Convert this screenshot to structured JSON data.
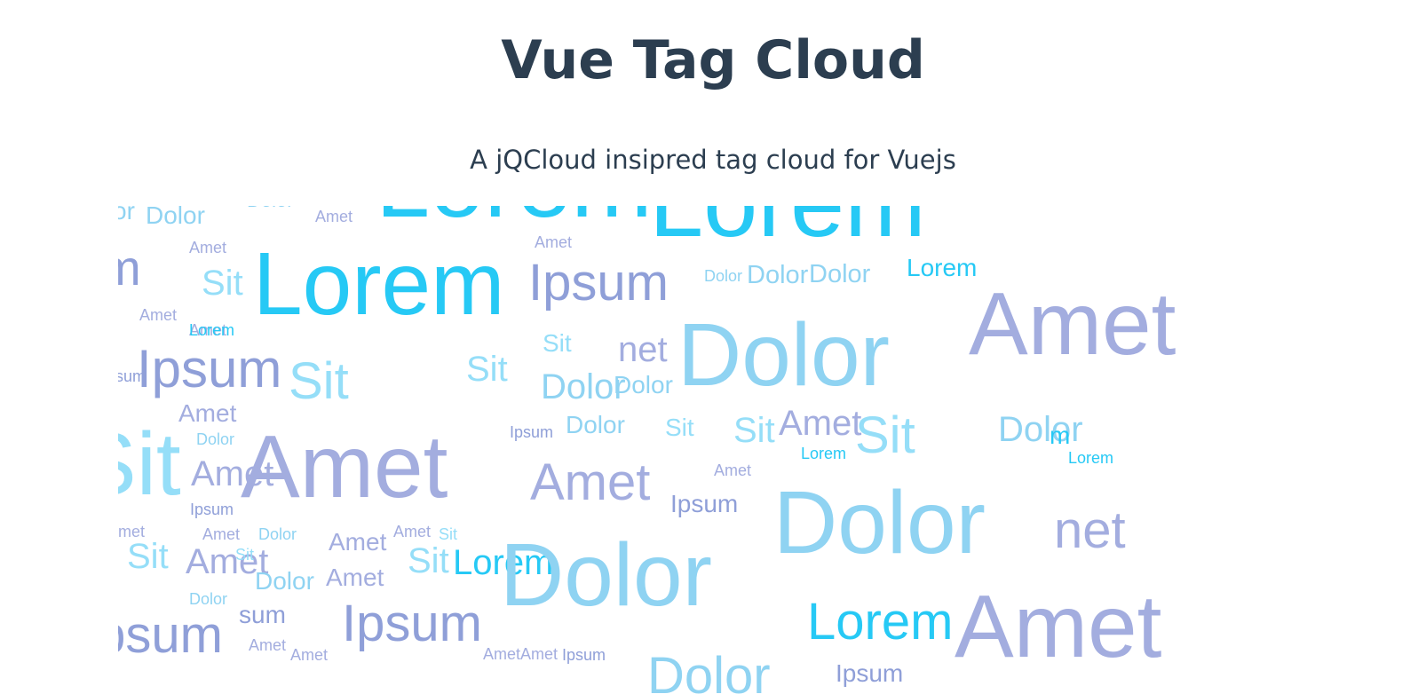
{
  "header": {
    "title": "Vue Tag Cloud",
    "subtitle": "A jQCloud insipred tag cloud for Vuejs"
  },
  "colors": {
    "heading": "#2c3e50",
    "lorem": "#26c9f5",
    "ipsum": "#8f9fd8",
    "dolor": "#8fd3f2",
    "sit": "#95def8",
    "amet": "#a3addf"
  },
  "cloud": {
    "words": [
      {
        "text": "or",
        "kind": "dolor"
      },
      {
        "text": "Dolor",
        "kind": "dolor"
      },
      {
        "text": "Dolor",
        "kind": "dolor"
      },
      {
        "text": "Amet",
        "kind": "amet"
      },
      {
        "text": "Lorem",
        "kind": "lorem"
      },
      {
        "text": "Lorem",
        "kind": "lorem"
      },
      {
        "text": "Amet",
        "kind": "amet"
      },
      {
        "text": "Amet",
        "kind": "amet"
      },
      {
        "text": "um",
        "kind": "ipsum"
      },
      {
        "text": "Sit",
        "kind": "sit"
      },
      {
        "text": "Lorem",
        "kind": "lorem"
      },
      {
        "text": "Ipsum",
        "kind": "ipsum"
      },
      {
        "text": "Amet",
        "kind": "amet"
      },
      {
        "text": "Dolor",
        "kind": "dolor"
      },
      {
        "text": "Dolor",
        "kind": "dolor"
      },
      {
        "text": "Dolor",
        "kind": "dolor"
      },
      {
        "text": "Lorem",
        "kind": "lorem"
      },
      {
        "text": "Amet",
        "kind": "amet"
      },
      {
        "text": "Amet",
        "kind": "amet"
      },
      {
        "text": "Lorem",
        "kind": "lorem"
      },
      {
        "text": "Dolor",
        "kind": "dolor"
      },
      {
        "text": "Sit",
        "kind": "sit"
      },
      {
        "text": "net",
        "kind": "amet"
      },
      {
        "text": "Ipsum",
        "kind": "ipsum"
      },
      {
        "text": "Ipsum",
        "kind": "ipsum"
      },
      {
        "text": "Sit",
        "kind": "sit"
      },
      {
        "text": "Sit",
        "kind": "sit"
      },
      {
        "text": "Dolor",
        "kind": "dolor"
      },
      {
        "text": "Dolor",
        "kind": "dolor"
      },
      {
        "text": "Amet",
        "kind": "amet"
      },
      {
        "text": "Dolor",
        "kind": "dolor"
      },
      {
        "text": "Dolor",
        "kind": "dolor"
      },
      {
        "text": "Sit",
        "kind": "sit"
      },
      {
        "text": "Sit",
        "kind": "sit"
      },
      {
        "text": "Amet",
        "kind": "amet"
      },
      {
        "text": "Ipsum",
        "kind": "ipsum"
      },
      {
        "text": "Sit",
        "kind": "sit"
      },
      {
        "text": "Dolor",
        "kind": "dolor"
      },
      {
        "text": "m",
        "kind": "lorem"
      },
      {
        "text": "Lorem",
        "kind": "lorem"
      },
      {
        "text": "Sit",
        "kind": "sit"
      },
      {
        "text": "Amet",
        "kind": "amet"
      },
      {
        "text": "Amet",
        "kind": "amet"
      },
      {
        "text": "Ipsum",
        "kind": "ipsum"
      },
      {
        "text": "Amet",
        "kind": "amet"
      },
      {
        "text": "Amet",
        "kind": "amet"
      },
      {
        "text": "Lorem",
        "kind": "lorem"
      },
      {
        "text": "Dolor",
        "kind": "dolor"
      },
      {
        "text": "Ipsum",
        "kind": "ipsum"
      },
      {
        "text": "net",
        "kind": "amet"
      },
      {
        "text": "Amet",
        "kind": "amet"
      },
      {
        "text": "Amet",
        "kind": "amet"
      },
      {
        "text": "Dolor",
        "kind": "dolor"
      },
      {
        "text": "Amet",
        "kind": "amet"
      },
      {
        "text": "Amet",
        "kind": "amet"
      },
      {
        "text": "Sit",
        "kind": "sit"
      },
      {
        "text": "Sit",
        "kind": "sit"
      },
      {
        "text": "Amet",
        "kind": "amet"
      },
      {
        "text": "Sit",
        "kind": "sit"
      },
      {
        "text": "Sit",
        "kind": "sit"
      },
      {
        "text": "Lorem",
        "kind": "lorem"
      },
      {
        "text": "Dolor",
        "kind": "dolor"
      },
      {
        "text": "Dolor",
        "kind": "dolor"
      },
      {
        "text": "Amet",
        "kind": "amet"
      },
      {
        "text": "Dolor",
        "kind": "dolor"
      },
      {
        "text": "sum",
        "kind": "ipsum"
      },
      {
        "text": "Ipsum",
        "kind": "ipsum"
      },
      {
        "text": "Ipsum",
        "kind": "ipsum"
      },
      {
        "text": "Lorem",
        "kind": "lorem"
      },
      {
        "text": "Amet",
        "kind": "amet"
      },
      {
        "text": "Amet",
        "kind": "amet"
      },
      {
        "text": "Amet",
        "kind": "amet"
      },
      {
        "text": "AmetAmet",
        "kind": "amet"
      },
      {
        "text": "Ipsum",
        "kind": "ipsum"
      },
      {
        "text": "Dolor",
        "kind": "dolor"
      },
      {
        "text": "Ipsum",
        "kind": "ipsum"
      }
    ]
  }
}
